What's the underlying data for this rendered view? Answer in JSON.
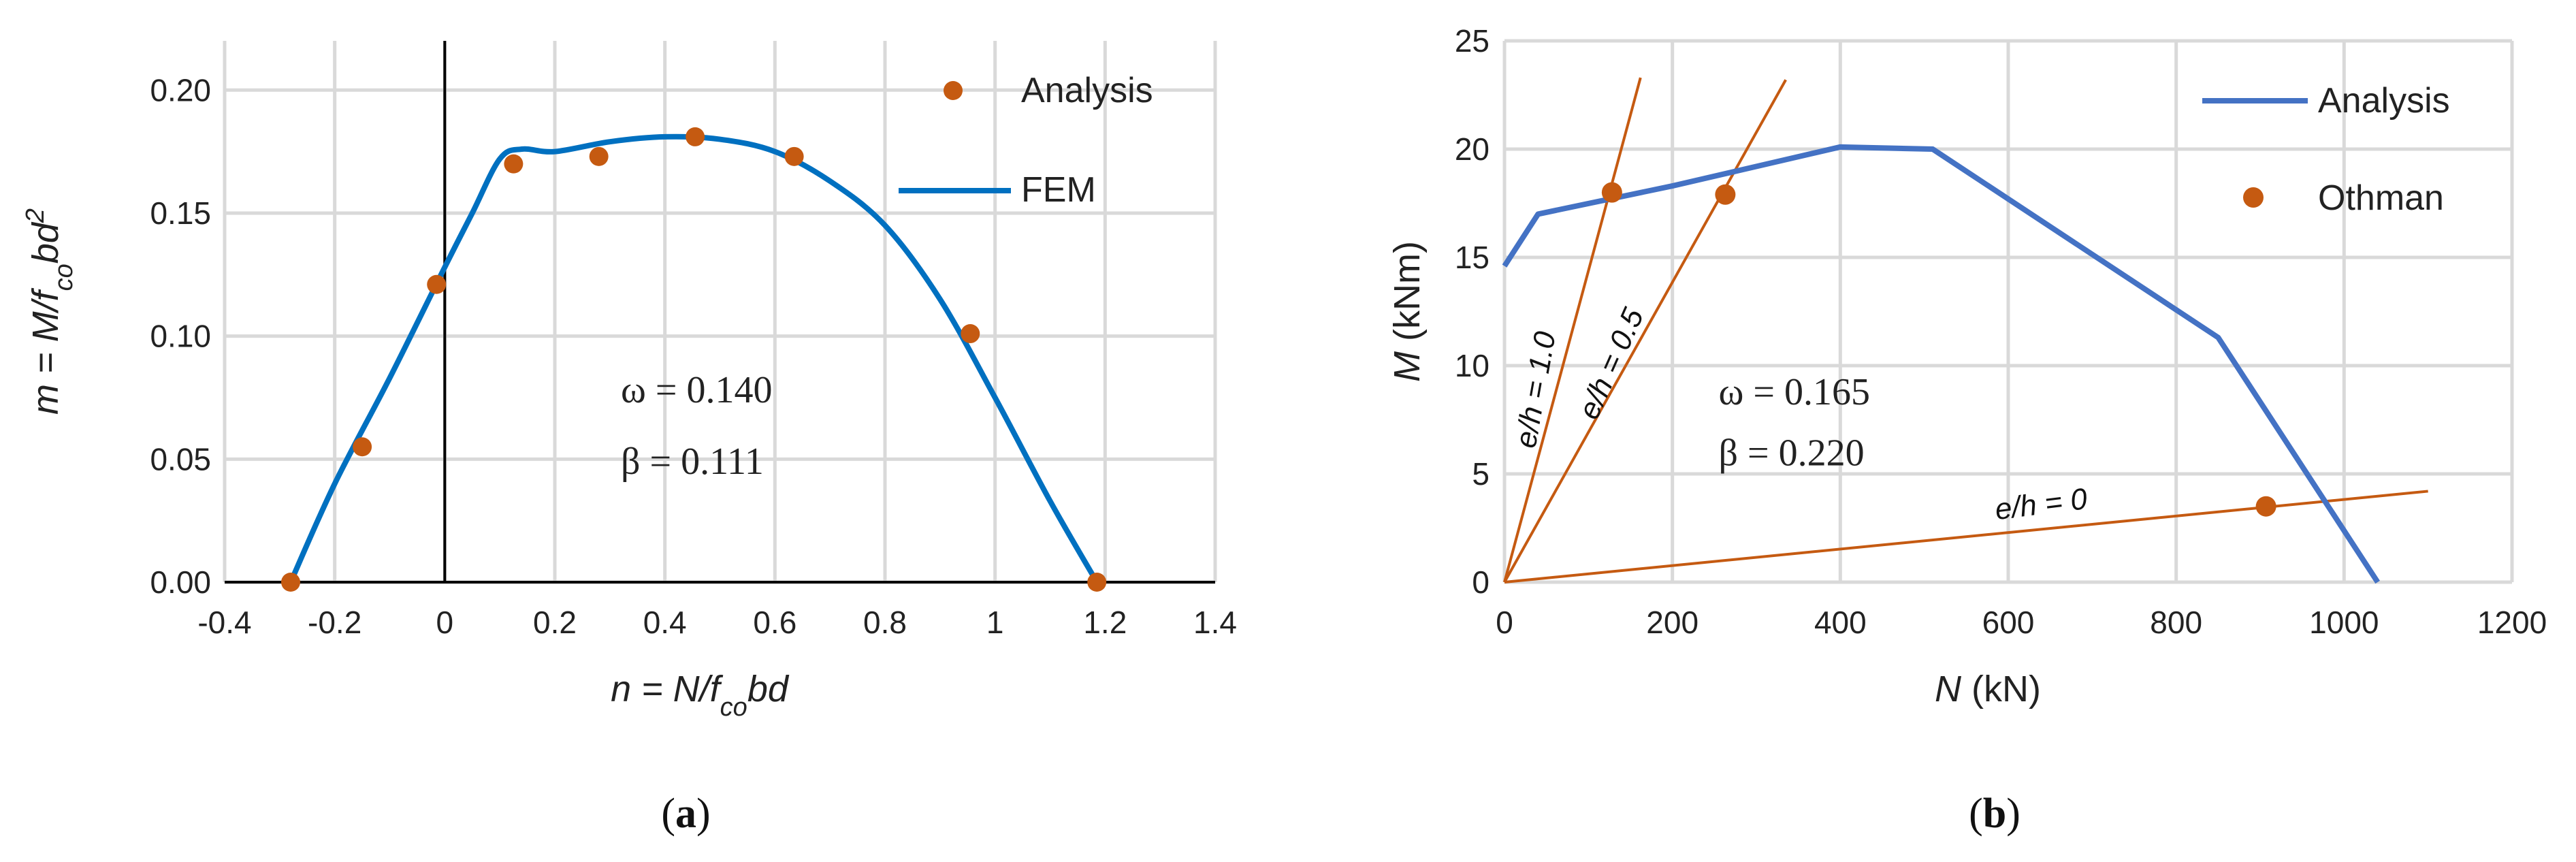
{
  "chart_data": [
    {
      "panel_label": "(a)",
      "type": "line",
      "xlabel": "n = N/f_co bd",
      "ylabel": "m = M/f_co bd^2",
      "xlim": [
        -0.4,
        1.4
      ],
      "ylim": [
        0,
        0.22
      ],
      "xticks": [
        "-0.4",
        "-0.2",
        "0",
        "0.2",
        "0.4",
        "0.6",
        "0.8",
        "1",
        "1.2",
        "1.4"
      ],
      "yticks": [
        "0.00",
        "0.05",
        "0.10",
        "0.15",
        "0.20"
      ],
      "grid": true,
      "legend_position": "top-right",
      "series": [
        {
          "name": "Analysis",
          "type": "scatter",
          "color": "#C55A11",
          "x": [
            -0.28,
            -0.15,
            -0.015,
            0.125,
            0.28,
            0.455,
            0.635,
            0.955,
            1.185
          ],
          "y": [
            0.0,
            0.055,
            0.121,
            0.17,
            0.173,
            0.181,
            0.173,
            0.101,
            0.0
          ]
        },
        {
          "name": "FEM",
          "type": "line",
          "color": "#0070C0",
          "x": [
            -0.28,
            -0.2,
            -0.1,
            0.0,
            0.05,
            0.1,
            0.14,
            0.2,
            0.3,
            0.4,
            0.5,
            0.6,
            0.7,
            0.8,
            0.9,
            1.0,
            1.1,
            1.185
          ],
          "y": [
            0.0,
            0.04,
            0.083,
            0.128,
            0.15,
            0.172,
            0.176,
            0.175,
            0.179,
            0.181,
            0.18,
            0.175,
            0.163,
            0.145,
            0.115,
            0.075,
            0.033,
            0.0
          ]
        }
      ],
      "annotations": [
        "ω = 0.140",
        "β = 0.111"
      ],
      "annotation_pos": [
        [
          0.32,
          0.073
        ],
        [
          0.32,
          0.044
        ]
      ]
    },
    {
      "panel_label": "(b)",
      "type": "line",
      "xlabel": "N (kN)",
      "ylabel": "M (kNm)",
      "xlim": [
        0,
        1200
      ],
      "ylim": [
        0,
        25
      ],
      "xticks": [
        "0",
        "200",
        "400",
        "600",
        "800",
        "1000",
        "1200"
      ],
      "yticks": [
        "0",
        "5",
        "10",
        "15",
        "20",
        "25"
      ],
      "grid": true,
      "legend_position": "top-right",
      "series": [
        {
          "name": "Analysis",
          "type": "line",
          "color": "#4472C4",
          "x": [
            0,
            40,
            200,
            400,
            510,
            850,
            1040
          ],
          "y": [
            14.6,
            17.0,
            18.3,
            20.1,
            20.0,
            11.3,
            0.0
          ]
        },
        {
          "name": "Othman",
          "type": "scatter",
          "color": "#C55A11",
          "x": [
            128,
            263,
            907
          ],
          "y": [
            18.0,
            17.9,
            3.5
          ]
        }
      ],
      "reference_lines": [
        {
          "label": "e/h = 1.0",
          "color": "#C55A11",
          "x": [
            0,
            162
          ],
          "y": [
            0,
            23.3
          ]
        },
        {
          "label": "e/h = 0.5",
          "color": "#C55A11",
          "x": [
            0,
            335
          ],
          "y": [
            0,
            23.2
          ]
        },
        {
          "label": "e/h = 0",
          "color": "#C55A11",
          "x": [
            0,
            1100
          ],
          "y": [
            0,
            4.2
          ]
        }
      ],
      "annotations": [
        "ω = 0.165",
        "β = 0.220"
      ],
      "annotation_pos": [
        [
          255,
          8.2
        ],
        [
          255,
          5.4
        ]
      ]
    }
  ]
}
